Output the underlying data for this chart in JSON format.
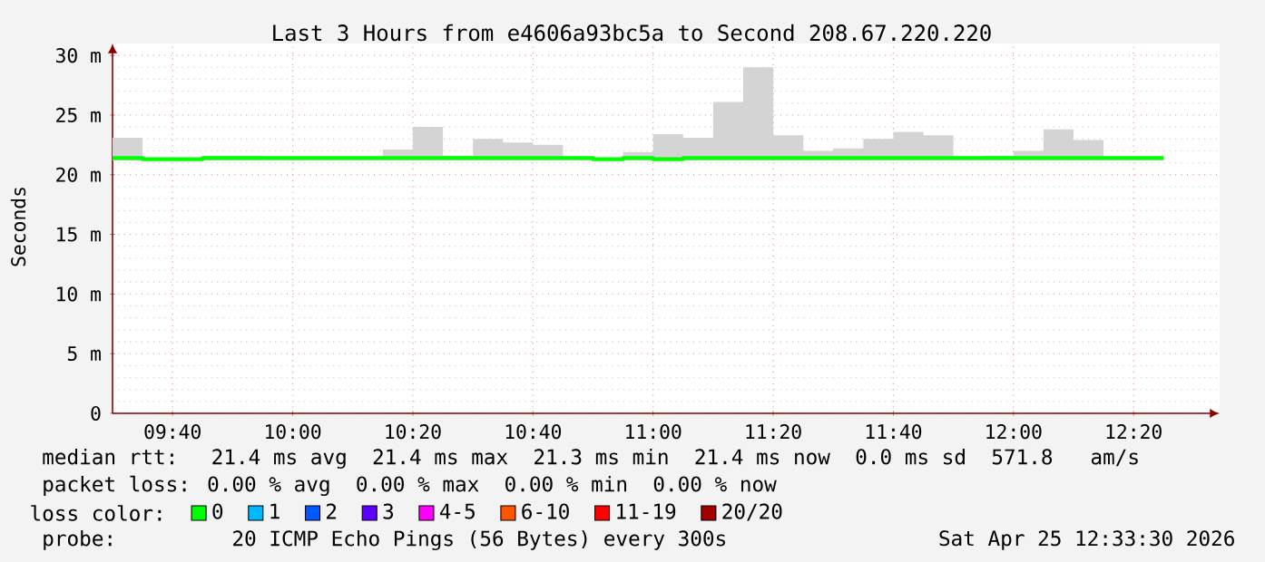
{
  "chart_data": {
    "type": "step",
    "title": "Last 3 Hours from e4606a93bc5a to Second 208.67.220.220",
    "ylabel": "Seconds",
    "legend_title": "loss color:",
    "x": [
      9.5,
      9.5833,
      9.6667,
      9.75,
      9.8333,
      9.9167,
      10,
      10.0833,
      10.1667,
      10.25,
      10.3333,
      10.4167,
      10.5,
      10.5833,
      10.6667,
      10.75,
      10.8333,
      10.9167,
      11,
      11.0833,
      11.1667,
      11.25,
      11.3333,
      11.4167,
      11.5,
      11.5833,
      11.6667,
      11.75,
      11.8333,
      11.9167,
      12,
      12.0833,
      12.1667,
      12.25,
      12.3333,
      12.4167
    ],
    "series": [
      {
        "name": "0",
        "color": "#00ff00",
        "values": [
          21.4,
          21.3,
          21.3,
          21.4,
          21.4,
          21.4,
          21.4,
          21.4,
          21.4,
          21.4,
          21.4,
          21.4,
          21.4,
          21.4,
          21.4,
          21.4,
          21.3,
          21.4,
          21.3,
          21.4,
          21.4,
          21.4,
          21.4,
          21.4,
          21.4,
          21.4,
          21.4,
          21.4,
          21.4,
          21.4,
          21.4,
          21.4,
          21.4,
          21.4,
          21.4,
          21.4
        ],
        "lower": [
          21.2,
          21.2,
          21.2,
          21.2,
          21.2,
          21.2,
          21.2,
          21.2,
          21.2,
          21.2,
          21.2,
          21.2,
          21.2,
          21.2,
          21.2,
          21.2,
          21.2,
          21.2,
          21.2,
          21.2,
          21.2,
          21.2,
          21.2,
          21.2,
          21.2,
          21.2,
          21.2,
          21.2,
          21.2,
          21.2,
          21.2,
          21.2,
          21.2,
          21.2,
          21.2,
          21.2
        ],
        "upper": [
          23.1,
          21.4,
          21.4,
          21.6,
          21.6,
          21.4,
          21.4,
          21.4,
          21.5,
          22.1,
          24.0,
          21.6,
          23.0,
          22.7,
          22.5,
          21.5,
          21.4,
          21.9,
          23.4,
          23.1,
          26.1,
          29.0,
          23.3,
          22.0,
          22.2,
          23.0,
          23.6,
          23.3,
          21.4,
          21.6,
          22.0,
          23.8,
          22.9,
          21.4,
          21.4,
          21.4
        ]
      },
      {
        "name": "1",
        "color": "#00b8ff",
        "values": [
          null,
          null,
          null,
          null,
          null,
          null,
          null,
          null,
          null,
          null,
          null,
          null,
          null,
          null,
          null,
          null,
          null,
          null,
          null,
          null,
          null,
          null,
          null,
          null,
          null,
          null,
          null,
          null,
          null,
          null,
          null,
          null,
          null,
          null,
          null,
          null
        ]
      },
      {
        "name": "2",
        "color": "#0059ff",
        "values": [
          null,
          null,
          null,
          null,
          null,
          null,
          null,
          null,
          null,
          null,
          null,
          null,
          null,
          null,
          null,
          null,
          null,
          null,
          null,
          null,
          null,
          null,
          null,
          null,
          null,
          null,
          null,
          null,
          null,
          null,
          null,
          null,
          null,
          null,
          null,
          null
        ]
      },
      {
        "name": "3",
        "color": "#5e00ff",
        "values": [
          null,
          null,
          null,
          null,
          null,
          null,
          null,
          null,
          null,
          null,
          null,
          null,
          null,
          null,
          null,
          null,
          null,
          null,
          null,
          null,
          null,
          null,
          null,
          null,
          null,
          null,
          null,
          null,
          null,
          null,
          null,
          null,
          null,
          null,
          null,
          null
        ]
      },
      {
        "name": "4-5",
        "color": "#ff00ff",
        "values": [
          null,
          null,
          null,
          null,
          null,
          null,
          null,
          null,
          null,
          null,
          null,
          null,
          null,
          null,
          null,
          null,
          null,
          null,
          null,
          null,
          null,
          null,
          null,
          null,
          null,
          null,
          null,
          null,
          null,
          null,
          null,
          null,
          null,
          null,
          null,
          null
        ]
      },
      {
        "name": "6-10",
        "color": "#ff5500",
        "values": [
          null,
          null,
          null,
          null,
          null,
          null,
          null,
          null,
          null,
          null,
          null,
          null,
          null,
          null,
          null,
          null,
          null,
          null,
          null,
          null,
          null,
          null,
          null,
          null,
          null,
          null,
          null,
          null,
          null,
          null,
          null,
          null,
          null,
          null,
          null,
          null
        ]
      },
      {
        "name": "11-19",
        "color": "#ff0000",
        "values": [
          null,
          null,
          null,
          null,
          null,
          null,
          null,
          null,
          null,
          null,
          null,
          null,
          null,
          null,
          null,
          null,
          null,
          null,
          null,
          null,
          null,
          null,
          null,
          null,
          null,
          null,
          null,
          null,
          null,
          null,
          null,
          null,
          null,
          null,
          null,
          null
        ]
      },
      {
        "name": "20/20",
        "color": "#a10000",
        "values": [
          null,
          null,
          null,
          null,
          null,
          null,
          null,
          null,
          null,
          null,
          null,
          null,
          null,
          null,
          null,
          null,
          null,
          null,
          null,
          null,
          null,
          null,
          null,
          null,
          null,
          null,
          null,
          null,
          null,
          null,
          null,
          null,
          null,
          null,
          null,
          null
        ]
      }
    ],
    "xlim": [
      9.5,
      12.572
    ],
    "ylim": [
      0,
      31
    ],
    "xticks": [
      {
        "value": 9.6667,
        "label": "09:40"
      },
      {
        "value": 10,
        "label": "10:00"
      },
      {
        "value": 10.3333,
        "label": "10:20"
      },
      {
        "value": 10.6667,
        "label": "10:40"
      },
      {
        "value": 11,
        "label": "11:00"
      },
      {
        "value": 11.3333,
        "label": "11:20"
      },
      {
        "value": 11.6667,
        "label": "11:40"
      },
      {
        "value": 12,
        "label": "12:00"
      },
      {
        "value": 12.3333,
        "label": "12:20"
      }
    ],
    "yticks": [
      0,
      {
        "value": 5,
        "label": "5 m"
      },
      {
        "value": 10,
        "label": "10 m"
      },
      {
        "value": 15,
        "label": "15 m"
      },
      {
        "value": 20,
        "label": "20 m"
      },
      {
        "value": 25,
        "label": "25 m"
      },
      {
        "value": 30,
        "label": "30 m"
      }
    ],
    "grid": true,
    "legend": "bottom",
    "annotations": [
      "median rtt:  21.4 ms avg  21.4 ms max  21.3 ms min  21.4 ms now  0.0 ms sd  571.8   am/s",
      "packet loss: 0.00 % avg  0.00 % max  0.00 % min  0.00 % now",
      "probe:       20 ICMP Echo Pings (56 Bytes) every 300s",
      "Sat Apr 25 12:33:30 2026"
    ]
  }
}
